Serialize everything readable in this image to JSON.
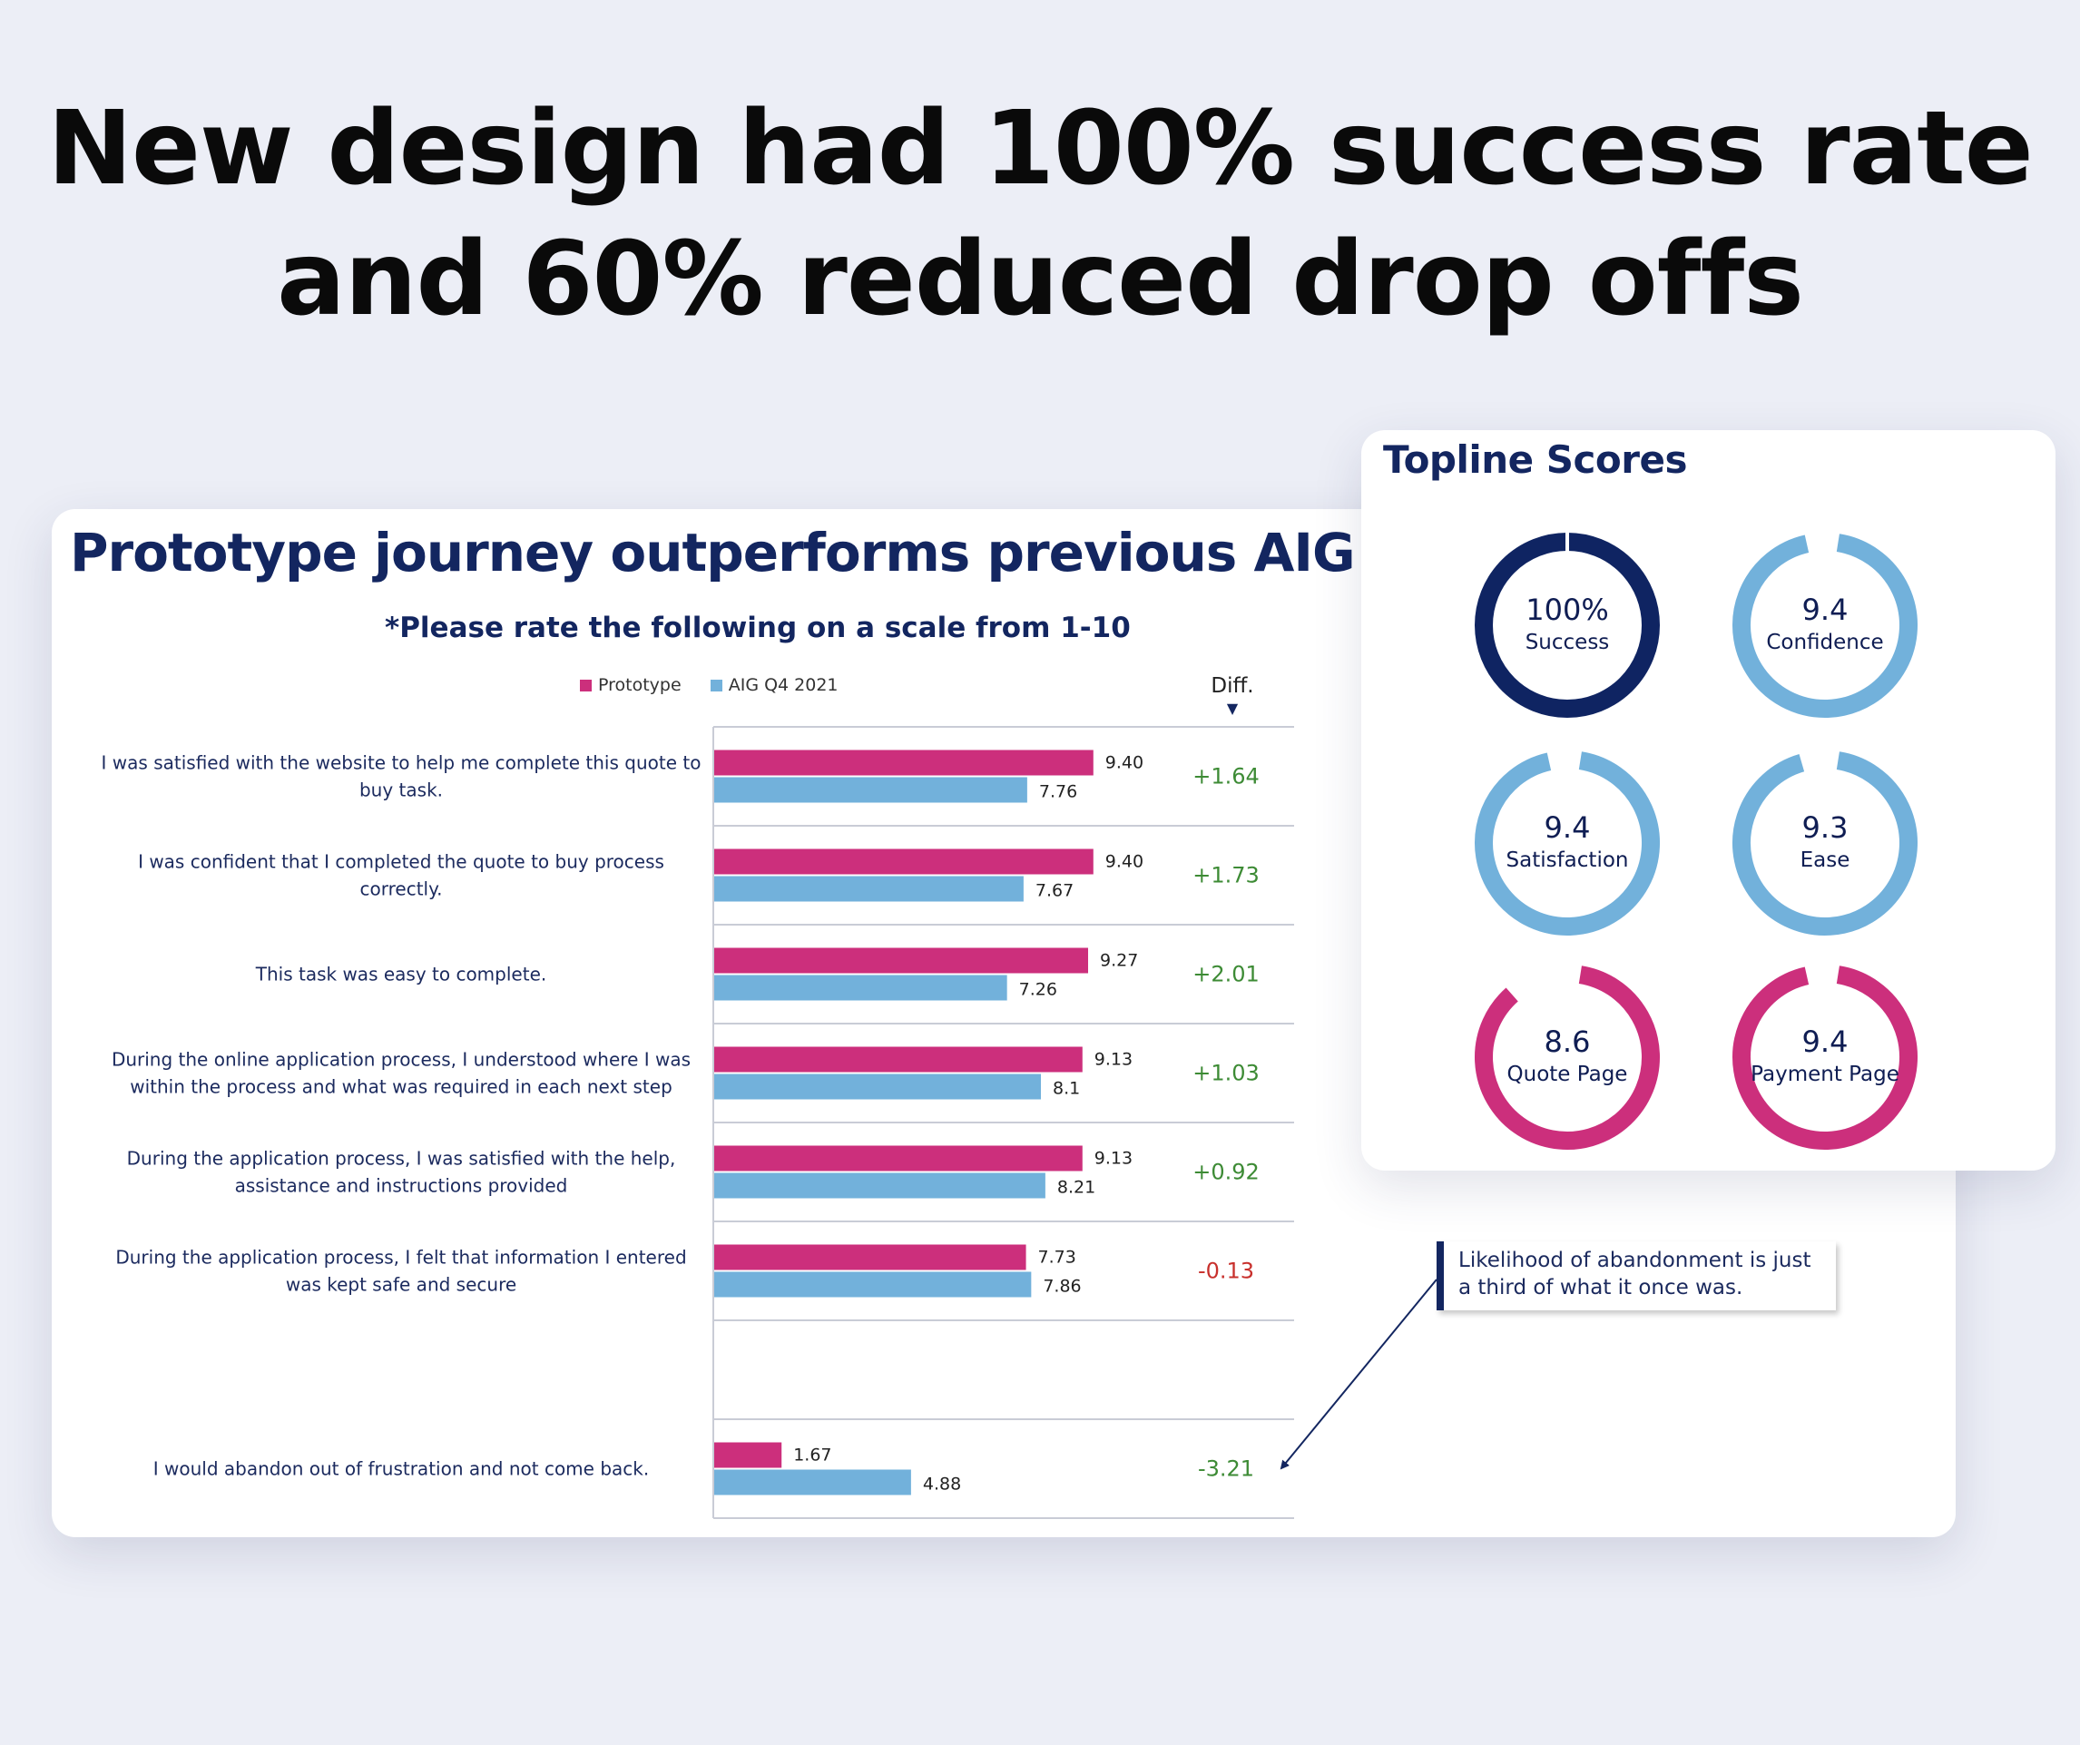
{
  "headline": {
    "line1": "New design had 100% success rate",
    "line2": "and 60% reduced drop offs"
  },
  "colors": {
    "prototype": "#cc2f7c",
    "aig": "#72b1db",
    "dark_navy": "#0f2462",
    "positive_diff": "#3d8b35",
    "negative_diff": "#c8302c"
  },
  "chart_data": {
    "type": "bar",
    "orientation": "horizontal",
    "title": "Prototype journey outperforms previous AIG design",
    "subtitle": "*Please rate the following on a scale from 1-10",
    "diff_label": "Diff.",
    "xlim": [
      0,
      14.4
    ],
    "legend_position": "top",
    "categories": [
      "I was satisfied with the website to help me complete this quote to buy task.",
      "I was confident that I completed the quote to buy process correctly.",
      "This task was easy to complete.",
      "During the online application process, I understood where I was within the process and what was required in each next step",
      "During the application process, I was satisfied with the help, assistance and instructions provided",
      "During the application process, I felt that information I entered was kept safe and secure",
      "",
      "I would abandon out of frustration and not come back."
    ],
    "series": [
      {
        "name": "Prototype",
        "values": [
          9.4,
          9.4,
          9.27,
          9.13,
          9.13,
          7.73,
          null,
          1.67
        ],
        "labels": [
          "9.40",
          "9.40",
          "9.27",
          "9.13",
          "9.13",
          "7.73",
          "",
          "1.67"
        ]
      },
      {
        "name": "AIG Q4 2021",
        "values": [
          7.76,
          7.67,
          7.26,
          8.1,
          8.21,
          7.86,
          null,
          4.88
        ],
        "labels": [
          "7.76",
          "7.67",
          "7.26",
          "8.1",
          "8.21",
          "7.86",
          "",
          "4.88"
        ]
      }
    ],
    "diffs": [
      "+1.64",
      "+1.73",
      "+2.01",
      "+1.03",
      "+0.92",
      "-0.13",
      "",
      "-3.21"
    ],
    "diff_status": [
      "positive",
      "positive",
      "positive",
      "positive",
      "positive",
      "negative",
      "",
      "positive"
    ]
  },
  "callout": {
    "text": "Likelihood of abandonment is just a third of what it once was."
  },
  "topline": {
    "title": "Topline Scores",
    "scores": [
      {
        "value": "100%",
        "label": "Success",
        "fraction": 1.0,
        "color": "dark_navy"
      },
      {
        "value": "9.4",
        "label": "Confidence",
        "fraction": 0.94,
        "color": "aig"
      },
      {
        "value": "9.4",
        "label": "Satisfaction",
        "fraction": 0.94,
        "color": "aig"
      },
      {
        "value": "9.3",
        "label": "Ease",
        "fraction": 0.93,
        "color": "aig"
      },
      {
        "value": "8.6",
        "label": "Quote Page",
        "fraction": 0.86,
        "color": "prototype"
      },
      {
        "value": "9.4",
        "label": "Payment Page",
        "fraction": 0.94,
        "color": "prototype"
      }
    ]
  }
}
